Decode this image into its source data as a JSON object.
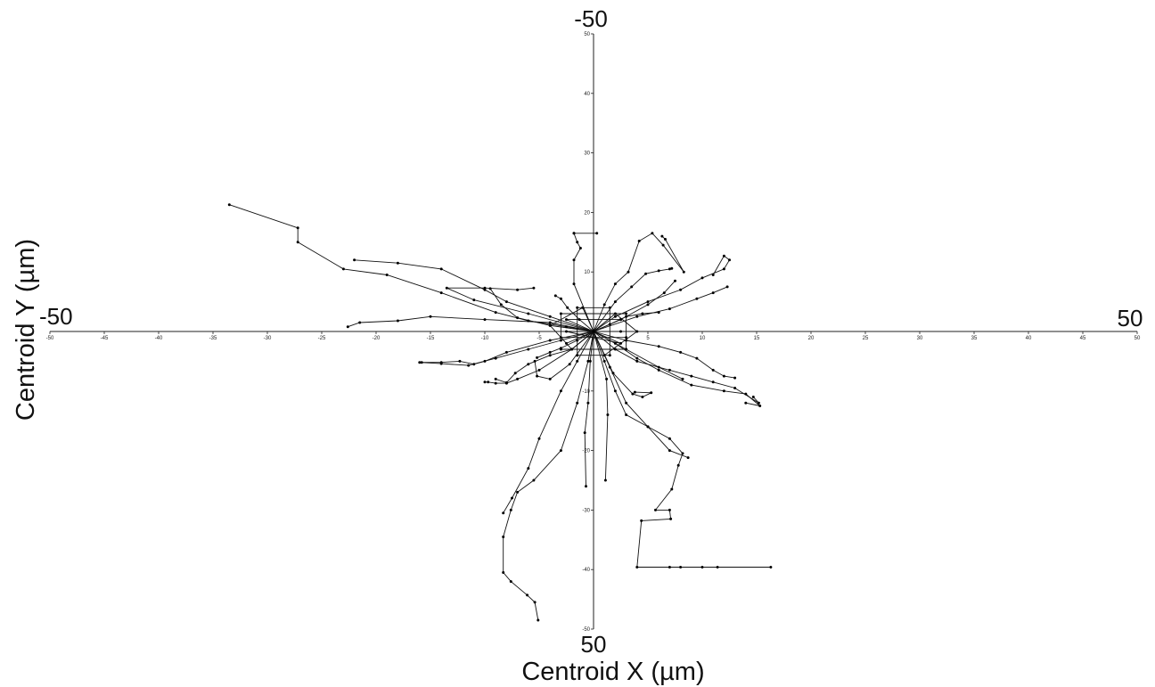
{
  "chart_data": {
    "type": "line",
    "title": "",
    "xlabel": "Centroid X (µm)",
    "ylabel": "Centroid Y (µm)",
    "xlim": [
      -50,
      50
    ],
    "ylim": [
      -50,
      50
    ],
    "y_axis_inverted": false,
    "grid": false,
    "legend": "none",
    "corner_labels": {
      "top": "-50",
      "bottom": "50",
      "left": "-50",
      "right": "50"
    },
    "x_ticks": [
      -50,
      -45,
      -40,
      -35,
      -30,
      -25,
      -20,
      -15,
      -10,
      -5,
      0,
      5,
      10,
      15,
      20,
      25,
      30,
      35,
      40,
      45,
      50
    ],
    "y_ticks": [
      -50,
      -40,
      -30,
      -20,
      -10,
      0,
      10,
      20,
      30,
      40,
      50
    ],
    "line_color": "#111111",
    "series": [
      {
        "x": [
          0,
          -2.5,
          -6,
          -9,
          -14,
          -19,
          -23,
          -27.2,
          -27.2,
          -33.5
        ],
        "y": [
          0,
          0.8,
          1.8,
          3.2,
          6.5,
          9.5,
          10.5,
          15,
          17.4,
          21.3
        ]
      },
      {
        "x": [
          0,
          -4,
          -10,
          -15,
          -18,
          -21.5,
          -22.6
        ],
        "y": [
          0,
          1.5,
          2,
          2.5,
          1.8,
          1.5,
          0.8
        ]
      },
      {
        "x": [
          0,
          -4,
          -8,
          -10,
          -14,
          -18,
          -22
        ],
        "y": [
          0,
          2.5,
          5,
          7,
          10.5,
          11.5,
          12
        ]
      },
      {
        "x": [
          0,
          -1.8,
          -1.8,
          -1.2,
          -1.5,
          -1.8,
          0.3,
          -1.8
        ],
        "y": [
          0,
          8,
          12,
          14,
          15,
          16.5,
          16.5,
          16.5
        ]
      },
      {
        "x": [
          0,
          1,
          2,
          3.2,
          4.2,
          5.4,
          6.4,
          8.3,
          6.6,
          6.3
        ],
        "y": [
          0,
          4.5,
          8,
          10,
          15.2,
          16.5,
          14.5,
          10,
          15.5,
          16
        ]
      },
      {
        "x": [
          0,
          2,
          5,
          8,
          10,
          12,
          12.5,
          12,
          11
        ],
        "y": [
          0,
          2.5,
          5,
          7,
          9,
          10.5,
          12,
          12.7,
          9.5
        ]
      },
      {
        "x": [
          0,
          -4,
          -8,
          -10,
          -11,
          -12.3,
          -14,
          -15.8
        ],
        "y": [
          0,
          -1.5,
          -3.5,
          -5,
          -5.5,
          -5,
          -5.2,
          -5.2
        ]
      },
      {
        "x": [
          0,
          -2,
          -5,
          -7,
          -8,
          -9,
          -9.7,
          -10
        ],
        "y": [
          0,
          -3,
          -6.5,
          -8,
          -8.7,
          -8.7,
          -8.5,
          -8.5
        ]
      },
      {
        "x": [
          0,
          -2,
          -4,
          -6,
          -7.2,
          -8,
          -9
        ],
        "y": [
          0,
          -3,
          -4,
          -5.5,
          -7,
          -8.6,
          -8
        ]
      },
      {
        "x": [
          0,
          2,
          4,
          7,
          9,
          11,
          13,
          15.2,
          14.7
        ],
        "y": [
          0,
          -3,
          -5,
          -6.5,
          -7.5,
          -8.5,
          -9.5,
          -12,
          -11
        ]
      },
      {
        "x": [
          0,
          2,
          4,
          6,
          9,
          12,
          14,
          15.3,
          14
        ],
        "y": [
          0,
          -2,
          -4.5,
          -6.5,
          -9,
          -10,
          -10.5,
          -12.5,
          -12
        ]
      },
      {
        "x": [
          0,
          1,
          2,
          3,
          5,
          7,
          8.2,
          7.8,
          7.2,
          5.7,
          7,
          7.1,
          4.4,
          4,
          8,
          11.4,
          16.3,
          10,
          7
        ],
        "y": [
          0,
          -5,
          -10,
          -14,
          -16,
          -18,
          -20.5,
          -22.5,
          -26.5,
          -30,
          -30,
          -31.5,
          -31.8,
          -39.6,
          -39.6,
          -39.6,
          -39.6,
          -39.6,
          -39.6
        ]
      },
      {
        "x": [
          0,
          -0.5,
          -1.5,
          -3,
          -5.5,
          -7,
          -7.6,
          -8.3,
          -8.3,
          -7.6,
          -6.1,
          -5.4,
          -5.1
        ],
        "y": [
          0,
          -5,
          -12,
          -20,
          -25,
          -27,
          -30,
          -34.5,
          -40.5,
          -42,
          -44.3,
          -45.5,
          -48.5
        ]
      },
      {
        "x": [
          0,
          -1.5,
          -3,
          -5,
          -6,
          -7.5,
          -8.3
        ],
        "y": [
          0,
          -5,
          -10,
          -18,
          -23,
          -28,
          -30.5
        ]
      },
      {
        "x": [
          0,
          -0.3,
          -0.5,
          -0.8,
          -0.7
        ],
        "y": [
          0,
          -5,
          -12,
          -17,
          -26
        ]
      },
      {
        "x": [
          0,
          1.2,
          1.3,
          1.1
        ],
        "y": [
          0,
          -8,
          -14,
          -25
        ]
      },
      {
        "x": [
          0,
          1.5,
          3,
          5,
          7,
          8.7
        ],
        "y": [
          0,
          -6,
          -12,
          -16,
          -20,
          -21.2
        ]
      },
      {
        "x": [
          0,
          3,
          6,
          8.2
        ],
        "y": [
          0,
          -3,
          -6,
          -8
        ]
      },
      {
        "x": [
          0,
          -6,
          -11,
          -13.5,
          -10,
          -7,
          -5.5
        ],
        "y": [
          0,
          3,
          5.3,
          7.3,
          7.3,
          7,
          7.3
        ]
      },
      {
        "x": [
          0,
          -3,
          -6,
          -9,
          -11.5,
          -14,
          -16
        ],
        "y": [
          0,
          -1.5,
          -3,
          -4.5,
          -5.7,
          -5.4,
          -5.2
        ]
      },
      {
        "x": [
          0,
          4,
          7,
          9.5,
          11,
          12.3
        ],
        "y": [
          0,
          2.5,
          3.8,
          5.5,
          6.5,
          7.5
        ]
      },
      {
        "x": [
          0,
          3,
          6,
          8,
          9.5,
          11,
          12,
          13
        ],
        "y": [
          0,
          -1.5,
          -2.5,
          -3.5,
          -4.5,
          -6.5,
          -7.5,
          -7.8
        ]
      },
      {
        "x": [
          0,
          2.5,
          5,
          6.5,
          7.5
        ],
        "y": [
          0,
          2,
          4.5,
          6.5,
          8.5
        ]
      },
      {
        "x": [
          0,
          -4,
          -7,
          -8.5,
          -9.5
        ],
        "y": [
          0,
          1,
          2.3,
          4.5,
          7.2
        ]
      },
      {
        "x": [
          0,
          1.8,
          3.6,
          4.5,
          5.3,
          3.8
        ],
        "y": [
          0,
          -7,
          -10.5,
          -11,
          -10.3,
          -10.2
        ]
      },
      {
        "x": [
          0,
          -2.2,
          -4,
          -5.2,
          -5.4
        ],
        "y": [
          0,
          -5.5,
          -8,
          -7.5,
          -5
        ]
      },
      {
        "x": [
          0,
          2,
          3.5,
          4.8,
          6,
          7,
          7.2
        ],
        "y": [
          0,
          5,
          7.5,
          9.7,
          10.2,
          10.5,
          10.6
        ]
      },
      {
        "x": [
          0,
          -1.3,
          -2.4,
          -3,
          -3.5
        ],
        "y": [
          0,
          2,
          4,
          5.5,
          6
        ]
      },
      {
        "x": [
          0,
          1.5,
          3,
          4.5,
          6
        ],
        "y": [
          0,
          1.2,
          2.5,
          3,
          3.2
        ]
      },
      {
        "x": [
          0,
          -1.5,
          -3,
          -4,
          -5.2
        ],
        "y": [
          0,
          -1.5,
          -2.8,
          -3.5,
          -4.4
        ]
      },
      {
        "x": [
          -3,
          3,
          3,
          -3,
          -3,
          3
        ],
        "y": [
          -3,
          -3,
          3,
          3,
          -1,
          -1
        ]
      },
      {
        "x": [
          -2.5,
          2.5,
          -2.5,
          2.5,
          -2.5,
          2.5
        ],
        "y": [
          -2,
          2,
          2,
          -2,
          0,
          0
        ]
      },
      {
        "x": [
          -4,
          -1,
          1,
          4,
          2,
          -2,
          -4
        ],
        "y": [
          1,
          4,
          -4,
          0,
          3,
          -3,
          1
        ]
      },
      {
        "x": [
          -1.5,
          1.5,
          1.5,
          -1.5,
          -1.5
        ],
        "y": [
          -4,
          -4,
          4,
          4,
          -4
        ]
      }
    ]
  }
}
